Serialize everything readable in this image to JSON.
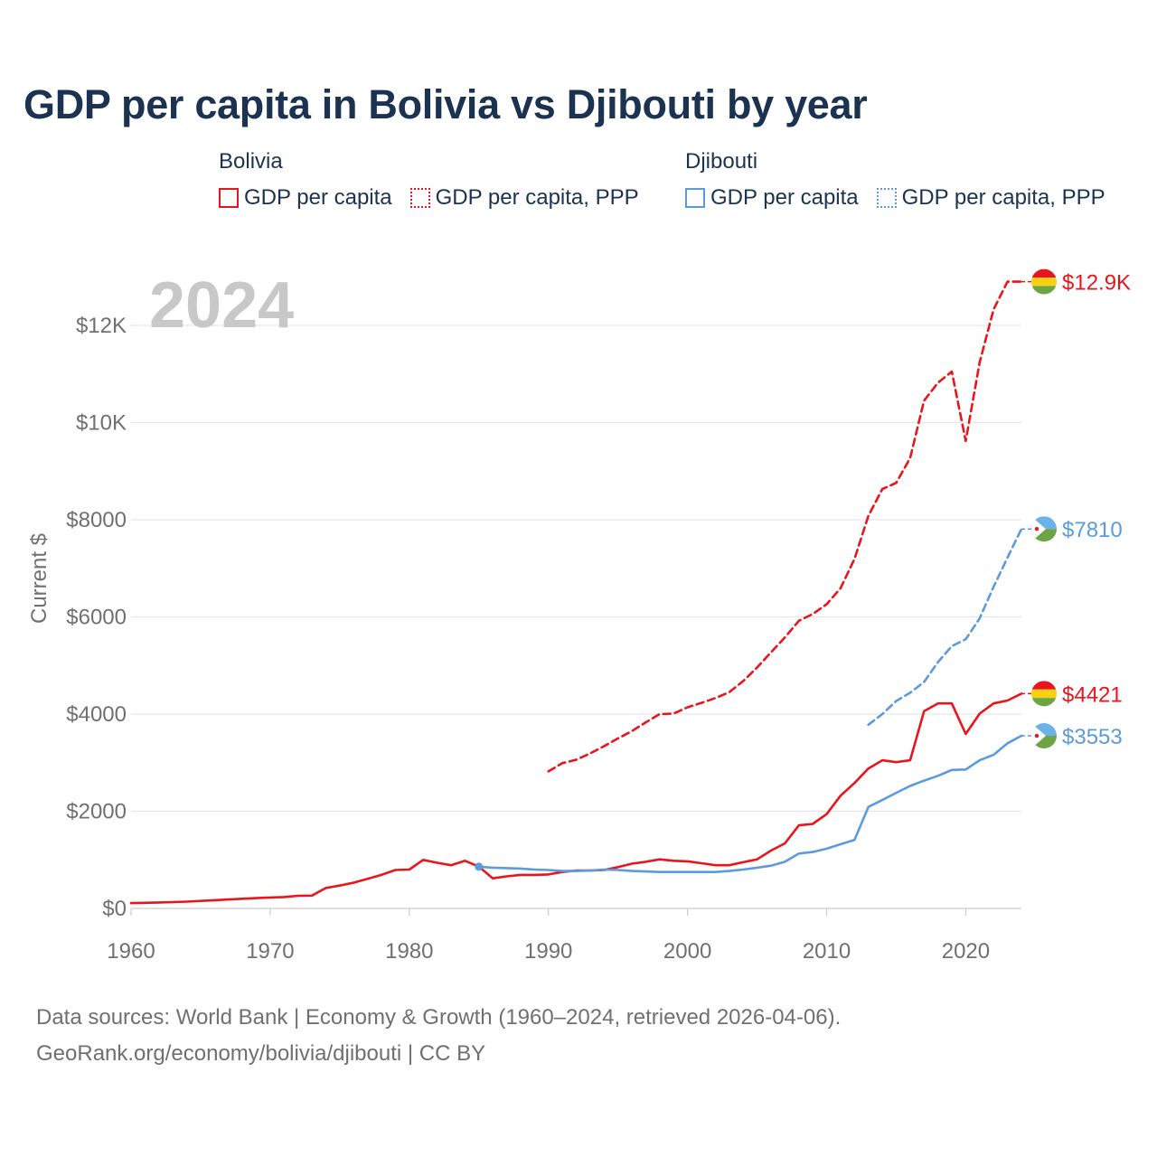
{
  "title": "GDP per capita in Bolivia vs Djibouti by year",
  "legend": [
    {
      "country": "Bolivia",
      "items": [
        "GDP per capita",
        "GDP per capita, PPP"
      ],
      "color": "#e8161c"
    },
    {
      "country": "Djibouti",
      "items": [
        "GDP per capita",
        "GDP per capita, PPP"
      ],
      "color": "#5b9bdc"
    }
  ],
  "footer": {
    "line1": "Data sources: World Bank | Economy & Growth (1960–2024, retrieved 2026-04-06).",
    "line2": "GeoRank.org/economy/bolivia/djibouti | CC BY"
  },
  "chart_data": {
    "type": "line",
    "title": "GDP per capita in Bolivia vs Djibouti by year",
    "year_label": "2024",
    "ylabel": "Current $",
    "xlabel": "",
    "xlim": [
      1960,
      2024
    ],
    "ylim": [
      0,
      13000
    ],
    "x_ticks": [
      1960,
      1970,
      1980,
      1990,
      2000,
      2010,
      2020
    ],
    "x_tick_labels": [
      "1960",
      "1970",
      "1980",
      "1990",
      "2000",
      "2010",
      "2020"
    ],
    "y_ticks": [
      0,
      2000,
      4000,
      6000,
      8000,
      10000,
      12000
    ],
    "y_tick_labels": [
      "$0",
      "$2000",
      "$4000",
      "$6000",
      "$8000",
      "$10K",
      "$12K"
    ],
    "grid": true,
    "series": [
      {
        "name": "Bolivia GDP per capita, PPP",
        "color": "#e8161c",
        "dash": "dashed",
        "end_label": "$12.9K",
        "flag": "bolivia",
        "x": [
          1990,
          1991,
          1992,
          1993,
          1994,
          1995,
          1996,
          1997,
          1998,
          1999,
          2000,
          2001,
          2002,
          2003,
          2004,
          2005,
          2006,
          2007,
          2008,
          2009,
          2010,
          2011,
          2012,
          2013,
          2014,
          2015,
          2016,
          2017,
          2018,
          2019,
          2020,
          2021,
          2022,
          2023,
          2024
        ],
        "y": [
          2820,
          2990,
          3060,
          3190,
          3340,
          3500,
          3650,
          3830,
          4000,
          4010,
          4140,
          4230,
          4330,
          4450,
          4680,
          4960,
          5270,
          5580,
          5920,
          6060,
          6260,
          6590,
          7190,
          8080,
          8630,
          8760,
          9270,
          10450,
          10820,
          11050,
          9620,
          11240,
          12330,
          12900,
          12900
        ]
      },
      {
        "name": "Djibouti GDP per capita, PPP",
        "color": "#5b9bdc",
        "dash": "dashed",
        "end_label": "$7810",
        "flag": "djibouti",
        "x": [
          2013,
          2014,
          2015,
          2016,
          2017,
          2018,
          2019,
          2020,
          2021,
          2022,
          2023,
          2024
        ],
        "y": [
          3780,
          4000,
          4270,
          4440,
          4660,
          5070,
          5400,
          5540,
          5970,
          6620,
          7220,
          7810
        ]
      },
      {
        "name": "Bolivia GDP per capita",
        "color": "#e8161c",
        "dash": "solid",
        "end_label": "$4421",
        "flag": "bolivia",
        "x": [
          1960,
          1961,
          1962,
          1963,
          1964,
          1965,
          1966,
          1967,
          1968,
          1969,
          1970,
          1971,
          1972,
          1973,
          1974,
          1975,
          1976,
          1977,
          1978,
          1979,
          1980,
          1981,
          1982,
          1983,
          1984,
          1985,
          1986,
          1987,
          1988,
          1989,
          1990,
          1991,
          1992,
          1993,
          1994,
          1995,
          1996,
          1997,
          1998,
          1999,
          2000,
          2001,
          2002,
          2003,
          2004,
          2005,
          2006,
          2007,
          2008,
          2009,
          2010,
          2011,
          2012,
          2013,
          2014,
          2015,
          2016,
          2017,
          2018,
          2019,
          2020,
          2021,
          2022,
          2023,
          2024
        ],
        "y": [
          110,
          115,
          122,
          130,
          140,
          155,
          170,
          185,
          200,
          212,
          225,
          235,
          260,
          265,
          420,
          470,
          530,
          610,
          690,
          790,
          800,
          1000,
          940,
          890,
          980,
          860,
          620,
          660,
          690,
          690,
          700,
          750,
          780,
          780,
          790,
          850,
          920,
          960,
          1010,
          980,
          970,
          930,
          890,
          890,
          950,
          1010,
          1190,
          1340,
          1710,
          1740,
          1940,
          2320,
          2580,
          2880,
          3050,
          3010,
          3050,
          4060,
          4220,
          4220,
          3590,
          4010,
          4220,
          4280,
          4421
        ]
      },
      {
        "name": "Djibouti GDP per capita",
        "color": "#5b9bdc",
        "dash": "solid",
        "end_label": "$3553",
        "flag": "djibouti",
        "x": [
          1985,
          1986,
          1987,
          1988,
          1989,
          1990,
          1991,
          1992,
          1993,
          1994,
          1995,
          1996,
          1997,
          1998,
          1999,
          2000,
          2001,
          2002,
          2003,
          2004,
          2005,
          2006,
          2007,
          2008,
          2009,
          2010,
          2011,
          2012,
          2013,
          2014,
          2015,
          2016,
          2017,
          2018,
          2019,
          2020,
          2021,
          2022,
          2023,
          2024
        ],
        "y": [
          860,
          840,
          830,
          820,
          800,
          790,
          770,
          770,
          780,
          800,
          790,
          770,
          760,
          750,
          750,
          750,
          750,
          750,
          770,
          800,
          840,
          880,
          960,
          1130,
          1160,
          1230,
          1320,
          1410,
          2090,
          2230,
          2380,
          2520,
          2630,
          2730,
          2850,
          2860,
          3050,
          3160,
          3400,
          3553
        ]
      }
    ]
  }
}
